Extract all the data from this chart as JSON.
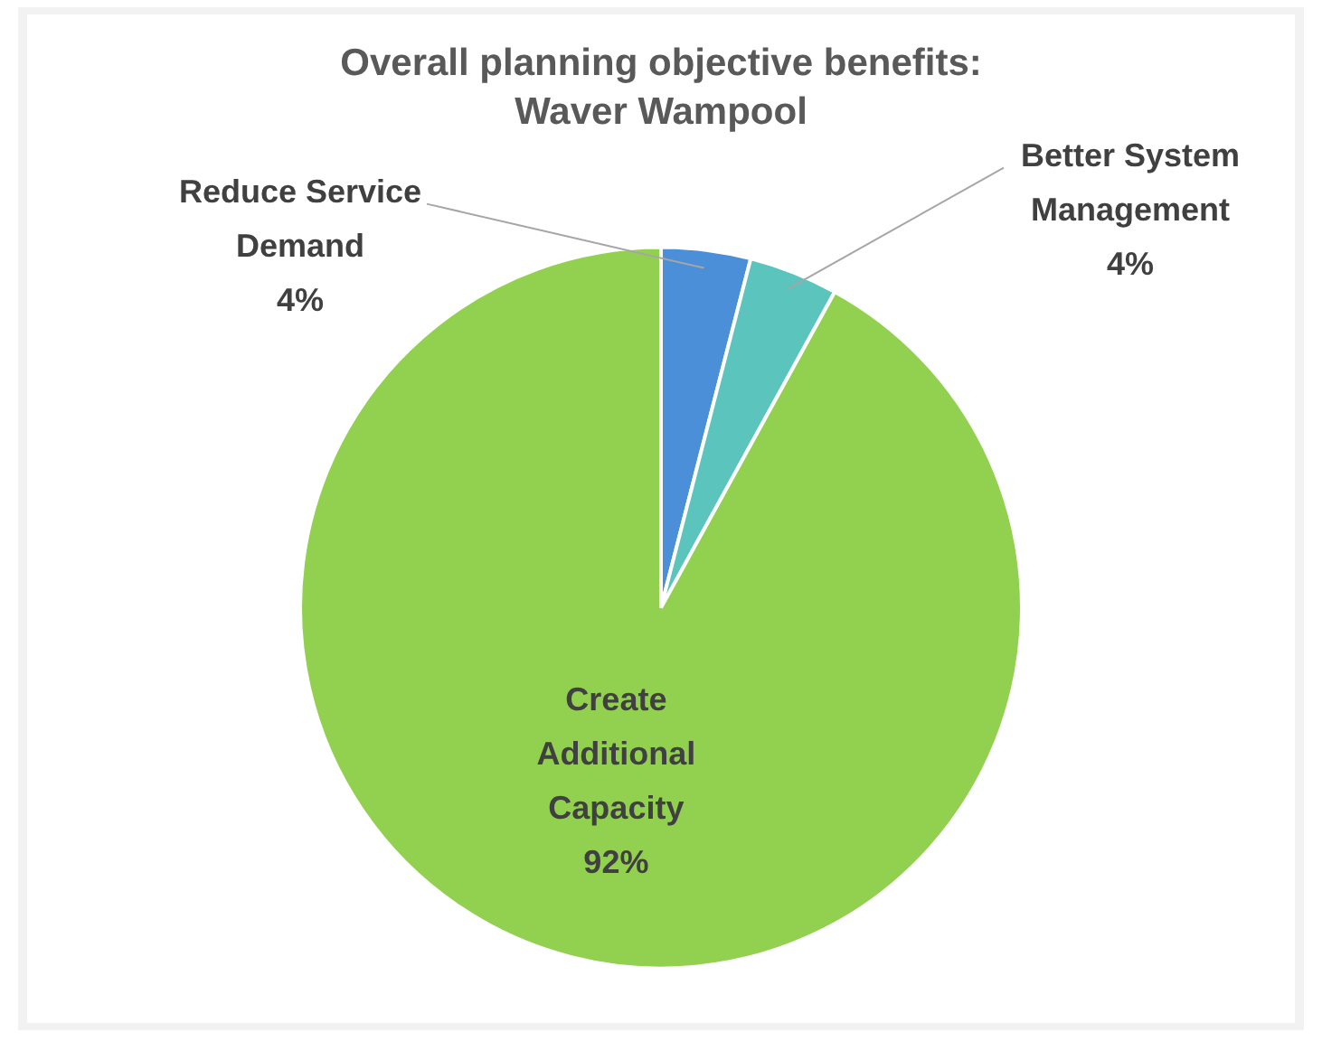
{
  "chart_data": {
    "type": "pie",
    "title": "Overall planning objective benefits: Waver Wampool",
    "categories": [
      "Reduce Service Demand",
      "Better System Management",
      "Create Additional Capacity"
    ],
    "values": [
      4,
      4,
      92
    ],
    "colors": [
      "#4a8fd8",
      "#5bc4bd",
      "#92d050"
    ],
    "value_labels": [
      "4%",
      "4%",
      "92%"
    ],
    "legend": false
  }
}
